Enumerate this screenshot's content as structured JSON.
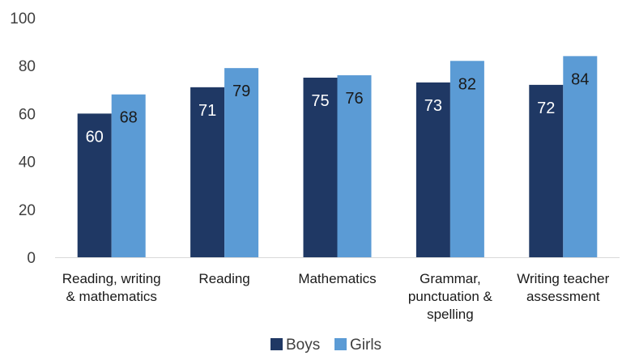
{
  "chart_data": {
    "type": "bar",
    "categories": [
      [
        "Reading, writing",
        "& mathematics"
      ],
      [
        "Reading"
      ],
      [
        "Mathematics"
      ],
      [
        "Grammar,",
        "punctuation &",
        "spelling"
      ],
      [
        "Writing teacher",
        "assessment"
      ]
    ],
    "series": [
      {
        "name": "Boys",
        "color": "#1f3864",
        "values": [
          60,
          71,
          75,
          73,
          72
        ]
      },
      {
        "name": "Girls",
        "color": "#5b9bd5",
        "values": [
          68,
          79,
          76,
          82,
          84
        ]
      }
    ],
    "ylim": [
      0,
      100
    ],
    "yticks": [
      0,
      20,
      40,
      60,
      80,
      100
    ],
    "grid": false,
    "legend": "bottom",
    "data_labels": true,
    "label_color_on_dark": "#ffffff",
    "label_color_on_light": "#1a1a1a"
  }
}
